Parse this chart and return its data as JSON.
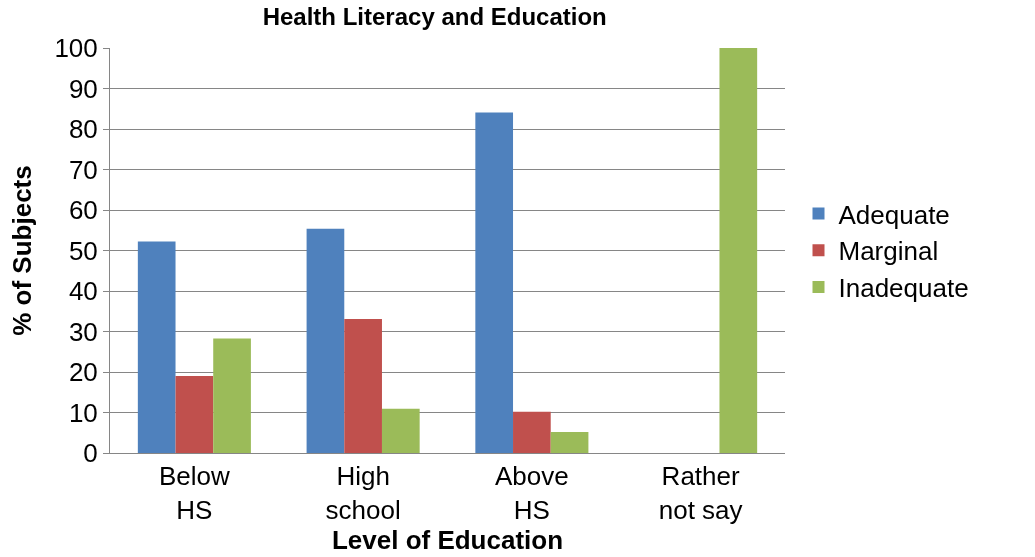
{
  "chart_data": {
    "type": "bar",
    "title": "Health Literacy and Education",
    "xlabel": "Level of Education",
    "ylabel": "% of Subjects",
    "categories": [
      "Below\nHS",
      "High\nschool",
      "Above\nHS",
      "Rather\nnot say"
    ],
    "series": [
      {
        "name": "Adequate",
        "color": "#4f81bd",
        "values": [
          52.2,
          55.4,
          84.1,
          0
        ]
      },
      {
        "name": "Marginal",
        "color": "#c0504d",
        "values": [
          19.0,
          33.1,
          10.2,
          0
        ]
      },
      {
        "name": "Inadequate",
        "color": "#9bbb59",
        "values": [
          28.3,
          10.9,
          5.2,
          100
        ]
      }
    ],
    "ylim": [
      0,
      100
    ],
    "yticks": [
      0,
      10,
      20,
      30,
      40,
      50,
      60,
      70,
      80,
      90,
      100
    ],
    "grid": "y",
    "legend": "right"
  }
}
